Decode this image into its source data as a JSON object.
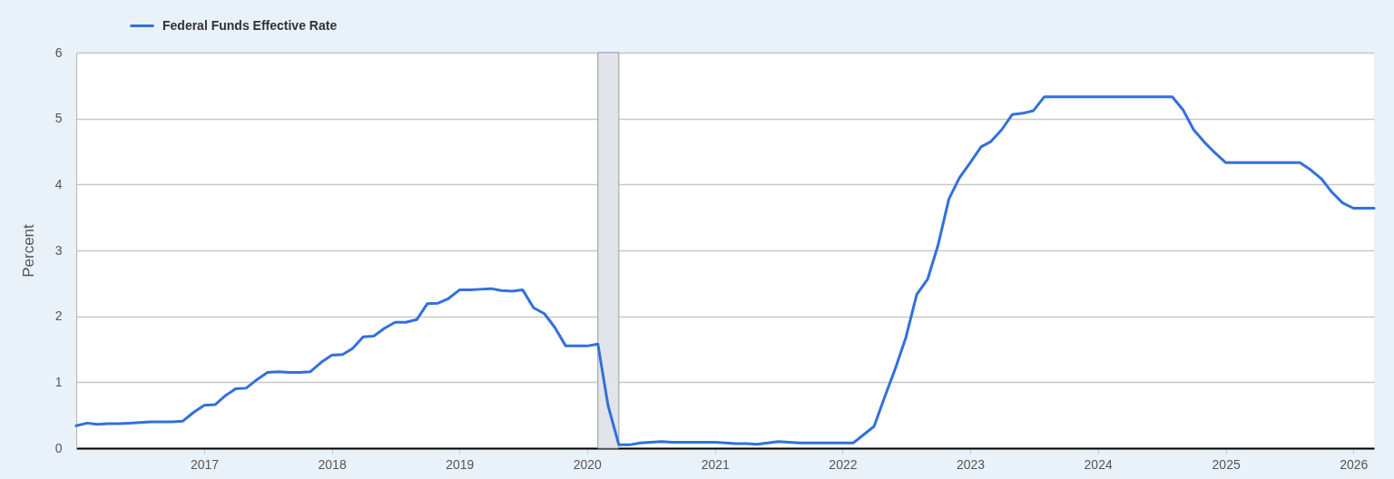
{
  "chart_data": {
    "type": "line",
    "ylabel": "Percent",
    "x": [
      "2016-01",
      "2016-02",
      "2016-03",
      "2016-04",
      "2016-05",
      "2016-06",
      "2016-07",
      "2016-08",
      "2016-09",
      "2016-10",
      "2016-11",
      "2016-12",
      "2017-01",
      "2017-02",
      "2017-03",
      "2017-04",
      "2017-05",
      "2017-06",
      "2017-07",
      "2017-08",
      "2017-09",
      "2017-10",
      "2017-11",
      "2017-12",
      "2018-01",
      "2018-02",
      "2018-03",
      "2018-04",
      "2018-05",
      "2018-06",
      "2018-07",
      "2018-08",
      "2018-09",
      "2018-10",
      "2018-11",
      "2018-12",
      "2019-01",
      "2019-02",
      "2019-03",
      "2019-04",
      "2019-05",
      "2019-06",
      "2019-07",
      "2019-08",
      "2019-09",
      "2019-10",
      "2019-11",
      "2019-12",
      "2020-01",
      "2020-02",
      "2020-03",
      "2020-04",
      "2020-05",
      "2020-06",
      "2020-07",
      "2020-08",
      "2020-09",
      "2020-10",
      "2020-11",
      "2020-12",
      "2021-01",
      "2021-02",
      "2021-03",
      "2021-04",
      "2021-05",
      "2021-06",
      "2021-07",
      "2021-08",
      "2021-09",
      "2021-10",
      "2021-11",
      "2021-12",
      "2022-01",
      "2022-02",
      "2022-03",
      "2022-04",
      "2022-05",
      "2022-06",
      "2022-07",
      "2022-08",
      "2022-09",
      "2022-10",
      "2022-11",
      "2022-12",
      "2023-01",
      "2023-02",
      "2023-03",
      "2023-04",
      "2023-05",
      "2023-06",
      "2023-07",
      "2023-08",
      "2023-09",
      "2023-10",
      "2023-11",
      "2023-12",
      "2024-01",
      "2024-02",
      "2024-03",
      "2024-04",
      "2024-05",
      "2024-06",
      "2024-07",
      "2024-08",
      "2024-09",
      "2024-10",
      "2024-11",
      "2024-12",
      "2025-01",
      "2025-02",
      "2025-03",
      "2025-04",
      "2025-05",
      "2025-06",
      "2025-07",
      "2025-08",
      "2025-09",
      "2025-10",
      "2025-11",
      "2025-12",
      "2026-01",
      "2026-02",
      "2026-03"
    ],
    "series": [
      {
        "name": "Federal Funds Effective Rate",
        "color": "#3270dc",
        "values": [
          0.34,
          0.38,
          0.36,
          0.37,
          0.37,
          0.38,
          0.39,
          0.4,
          0.4,
          0.4,
          0.41,
          0.54,
          0.65,
          0.66,
          0.79,
          0.9,
          0.91,
          1.04,
          1.15,
          1.16,
          1.15,
          1.15,
          1.16,
          1.3,
          1.41,
          1.42,
          1.51,
          1.69,
          1.7,
          1.82,
          1.91,
          1.91,
          1.95,
          2.19,
          2.2,
          2.27,
          2.4,
          2.4,
          2.41,
          2.42,
          2.39,
          2.38,
          2.4,
          2.13,
          2.04,
          1.83,
          1.55,
          1.55,
          1.55,
          1.58,
          0.65,
          0.05,
          0.05,
          0.08,
          0.09,
          0.1,
          0.09,
          0.09,
          0.09,
          0.09,
          0.09,
          0.08,
          0.07,
          0.07,
          0.06,
          0.08,
          0.1,
          0.09,
          0.08,
          0.08,
          0.08,
          0.08,
          0.08,
          0.08,
          0.2,
          0.33,
          0.77,
          1.21,
          1.68,
          2.33,
          2.56,
          3.08,
          3.78,
          4.1,
          4.33,
          4.57,
          4.65,
          4.83,
          5.06,
          5.08,
          5.12,
          5.33,
          5.33,
          5.33,
          5.33,
          5.33,
          5.33,
          5.33,
          5.33,
          5.33,
          5.33,
          5.33,
          5.33,
          5.33,
          5.13,
          4.83,
          4.64,
          4.48,
          4.33,
          4.33,
          4.33,
          4.33,
          4.33,
          4.33,
          4.33,
          4.33,
          4.22,
          4.09,
          3.88,
          3.72,
          3.64,
          3.64,
          3.64
        ]
      }
    ],
    "xlim": [
      "2016-01",
      "2026-03"
    ],
    "xticks": [
      "2017",
      "2018",
      "2019",
      "2020",
      "2021",
      "2022",
      "2023",
      "2024",
      "2025",
      "2026"
    ],
    "ylim": [
      0,
      6
    ],
    "yticks": [
      0,
      1,
      2,
      3,
      4,
      5,
      6
    ],
    "grid": "y",
    "legend": "top left",
    "line_style": "solid",
    "bands": [
      {
        "axis": "x",
        "from": "2020-02",
        "to": "2020-04",
        "color": "#e1e5ea"
      }
    ]
  }
}
